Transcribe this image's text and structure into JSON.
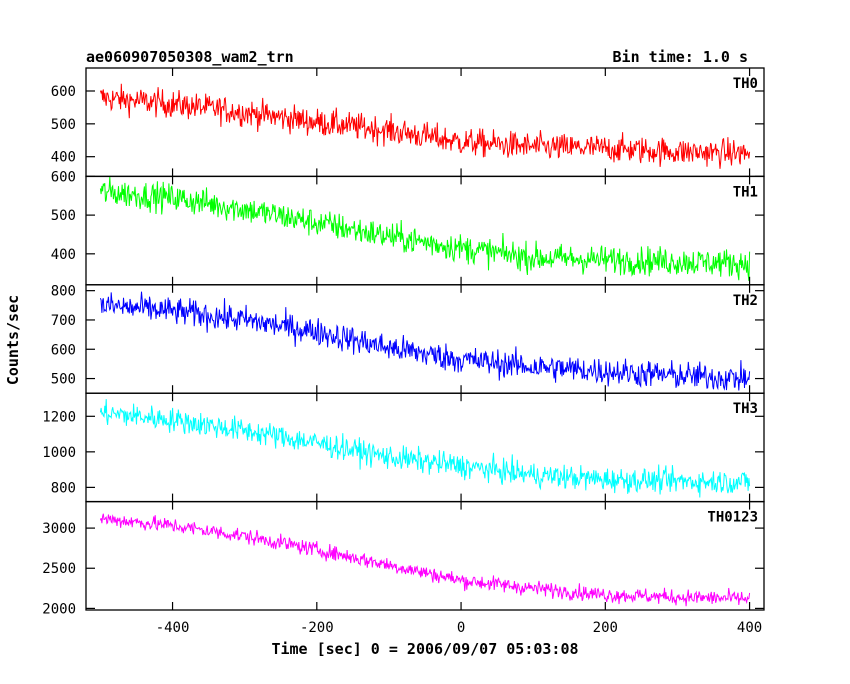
{
  "chart_data": {
    "type": "line",
    "title": "ae060907050308_wam2_trn",
    "bin_time_label": "Bin time: 1.0 s",
    "xlabel": "Time [sec] 0 = 2006/09/07 05:03:08",
    "ylabel": "Counts/sec",
    "xlim": [
      -520,
      420
    ],
    "x_ticks": [
      -400,
      -200,
      0,
      200,
      400
    ],
    "x_range_data": [
      -500,
      400
    ],
    "colors": {
      "TH0": "#ff0000",
      "TH1": "#00ff00",
      "TH2": "#0000ff",
      "TH3": "#00ffff",
      "TH0123": "#ff00ff"
    },
    "panels": [
      {
        "name": "TH0",
        "ylim": [
          340,
          670
        ],
        "y_ticks": [
          400,
          500,
          600
        ],
        "trend": [
          [
            -500,
            580
          ],
          [
            -400,
            560
          ],
          [
            -300,
            535
          ],
          [
            -200,
            505
          ],
          [
            -100,
            480
          ],
          [
            0,
            445
          ],
          [
            100,
            430
          ],
          [
            200,
            425
          ],
          [
            300,
            415
          ],
          [
            400,
            410
          ]
        ],
        "noise": 40
      },
      {
        "name": "TH1",
        "ylim": [
          320,
          600
        ],
        "y_ticks": [
          400,
          500,
          600
        ],
        "trend": [
          [
            -500,
            560
          ],
          [
            -400,
            545
          ],
          [
            -300,
            515
          ],
          [
            -200,
            480
          ],
          [
            -100,
            445
          ],
          [
            0,
            415
          ],
          [
            100,
            390
          ],
          [
            200,
            385
          ],
          [
            300,
            380
          ],
          [
            400,
            375
          ]
        ],
        "noise": 35
      },
      {
        "name": "TH2",
        "ylim": [
          450,
          820
        ],
        "y_ticks": [
          500,
          600,
          700,
          800
        ],
        "trend": [
          [
            -500,
            750
          ],
          [
            -400,
            730
          ],
          [
            -300,
            700
          ],
          [
            -200,
            660
          ],
          [
            -100,
            605
          ],
          [
            0,
            565
          ],
          [
            100,
            540
          ],
          [
            200,
            525
          ],
          [
            300,
            510
          ],
          [
            400,
            500
          ]
        ],
        "noise": 45
      },
      {
        "name": "TH3",
        "ylim": [
          720,
          1330
        ],
        "y_ticks": [
          800,
          1000,
          1200
        ],
        "trend": [
          [
            -500,
            1220
          ],
          [
            -400,
            1180
          ],
          [
            -300,
            1120
          ],
          [
            -200,
            1050
          ],
          [
            -100,
            970
          ],
          [
            0,
            920
          ],
          [
            100,
            870
          ],
          [
            200,
            845
          ],
          [
            300,
            835
          ],
          [
            400,
            830
          ]
        ],
        "noise": 65
      },
      {
        "name": "TH0123",
        "ylim": [
          1980,
          3330
        ],
        "y_ticks": [
          2000,
          2500,
          3000
        ],
        "trend": [
          [
            -500,
            3120
          ],
          [
            -400,
            3030
          ],
          [
            -300,
            2900
          ],
          [
            -200,
            2730
          ],
          [
            -100,
            2540
          ],
          [
            0,
            2350
          ],
          [
            100,
            2250
          ],
          [
            200,
            2170
          ],
          [
            300,
            2140
          ],
          [
            400,
            2120
          ]
        ],
        "noise": 90
      }
    ]
  }
}
